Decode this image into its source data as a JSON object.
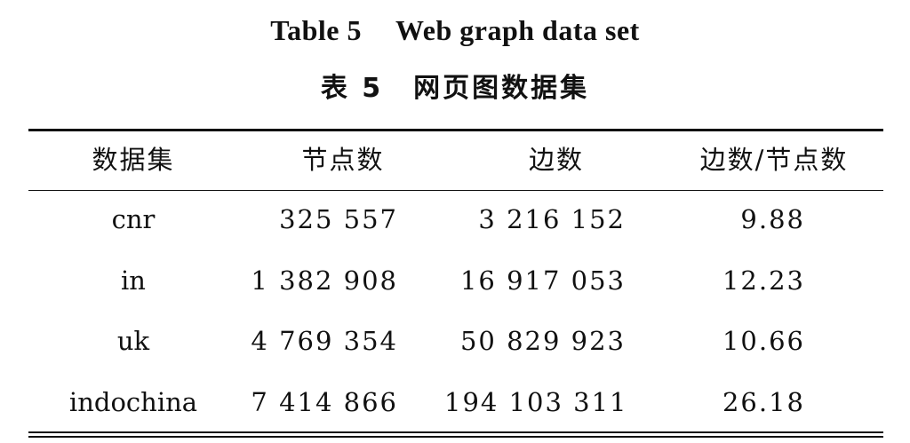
{
  "title_en": {
    "label": "Table 5",
    "text": "Web graph data set"
  },
  "title_zh": {
    "label": "表 5",
    "text": "网页图数据集"
  },
  "headers": [
    "数据集",
    "节点数",
    "边数",
    "边数/节点数"
  ],
  "rows": [
    [
      "cnr",
      "325 557",
      "3 216 152",
      "9.88"
    ],
    [
      "in",
      "1 382 908",
      "16 917 053",
      "12.23"
    ],
    [
      "uk",
      "4 769 354",
      "50 829 923",
      "10.66"
    ],
    [
      "indochina",
      "7 414 866",
      "194 103 311",
      "26.18"
    ]
  ]
}
